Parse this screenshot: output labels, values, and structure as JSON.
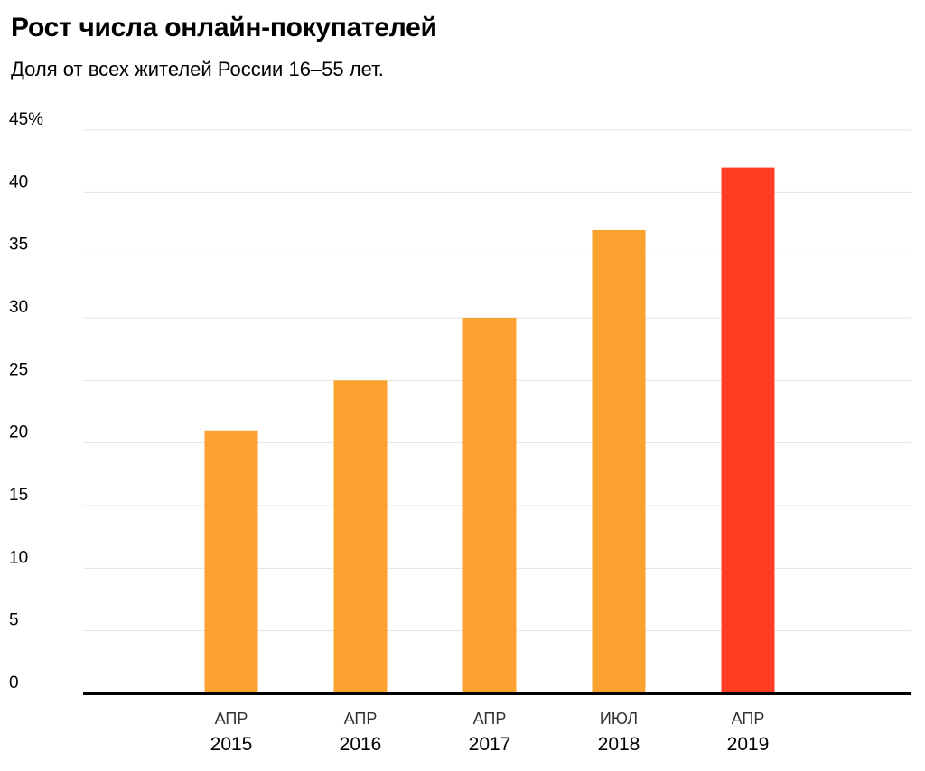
{
  "chart_data": {
    "type": "bar",
    "title": "Рост числа онлайн-покупателей",
    "subtitle": "Доля от всех жителей России 16–55 лет.",
    "categories": [
      {
        "month": "АПР",
        "year": "2015"
      },
      {
        "month": "АПР",
        "year": "2016"
      },
      {
        "month": "АПР",
        "year": "2017"
      },
      {
        "month": "ИЮЛ",
        "year": "2018"
      },
      {
        "month": "АПР",
        "year": "2019"
      }
    ],
    "values": [
      21,
      25,
      30,
      37,
      42
    ],
    "colors": [
      "#FBA12F",
      "#FBA12F",
      "#FBA12F",
      "#FBA12F",
      "#FF3D22"
    ],
    "ylim": [
      0,
      45
    ],
    "yticks": [
      0,
      5,
      10,
      15,
      20,
      25,
      30,
      35,
      40,
      45
    ],
    "ytick_labels": [
      "0",
      "5",
      "10",
      "15",
      "20",
      "25",
      "30",
      "35",
      "40",
      "45%"
    ],
    "grid": true,
    "gridline_color": "#e3e3e3",
    "baseline_color": "#000000",
    "xlabel": "",
    "ylabel": ""
  }
}
